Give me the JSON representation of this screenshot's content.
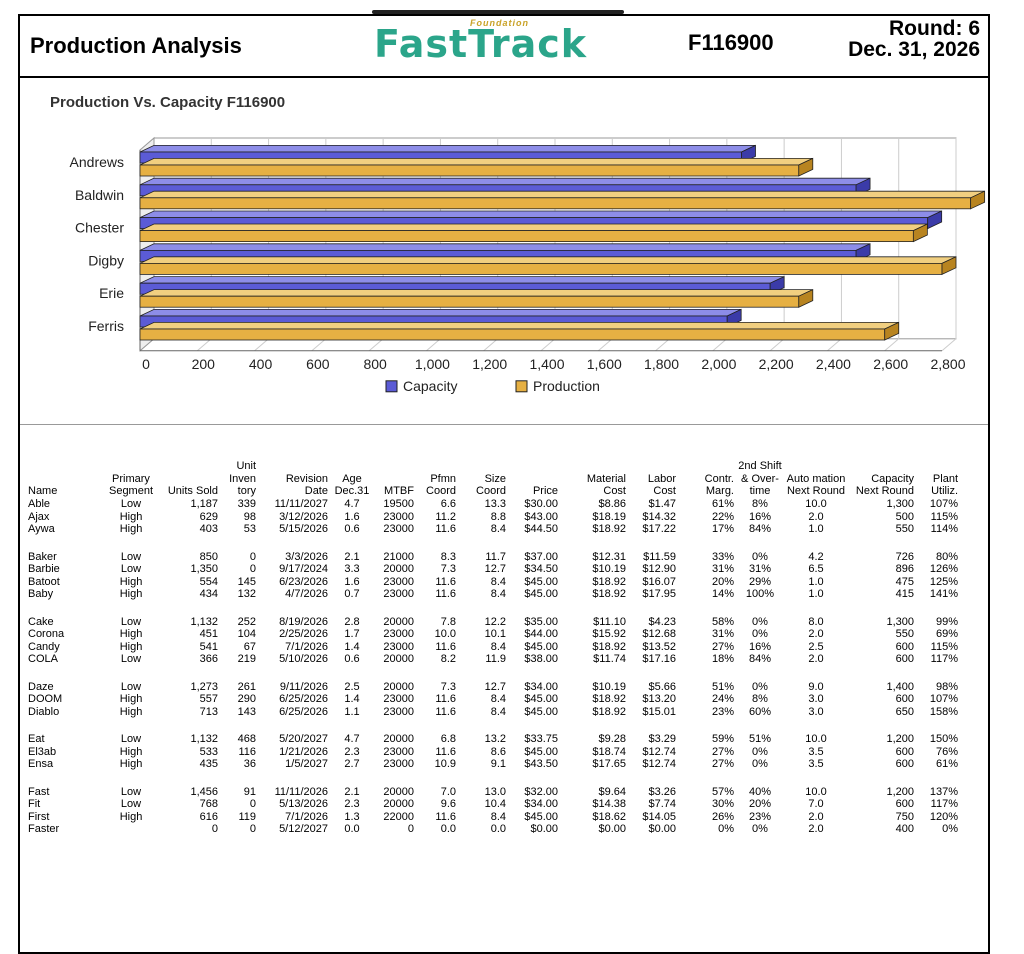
{
  "header": {
    "title": "Production Analysis",
    "logo_small": "Foundation",
    "logo_main": "FastTrack",
    "company": "F116900",
    "round_label": "Round: 6",
    "date": "Dec. 31, 2026"
  },
  "chart_data": {
    "type": "bar",
    "orientation": "horizontal",
    "title": "Production Vs. Capacity  F116900",
    "categories": [
      "Andrews",
      "Baldwin",
      "Chester",
      "Digby",
      "Erie",
      "Ferris"
    ],
    "series": [
      {
        "name": "Capacity",
        "color": "#5b5bd6",
        "values": [
          2100,
          2500,
          2750,
          2500,
          2200,
          2050
        ]
      },
      {
        "name": "Production",
        "color": "#e6b043",
        "values": [
          2300,
          2900,
          2700,
          2800,
          2300,
          2600
        ]
      }
    ],
    "xlim": [
      0,
      2800
    ],
    "xticks": [
      "0",
      "200",
      "400",
      "600",
      "800",
      "1,000",
      "1,200",
      "1,400",
      "1,600",
      "1,800",
      "2,000",
      "2,200",
      "2,400",
      "2,600",
      "2,800"
    ],
    "grid": true,
    "legend": "bottom"
  },
  "table": {
    "headers": [
      "Name",
      "Primary Segment",
      "Units Sold",
      "Unit Inven tory",
      "Revision Date",
      "Age Dec.31",
      "MTBF",
      "Pfmn Coord",
      "Size Coord",
      "Price",
      "Material Cost",
      "Labor Cost",
      "Contr. Marg.",
      "2nd Shift & Over- time",
      "Auto mation Next Round",
      "Capacity Next Round",
      "Plant Utiliz."
    ],
    "groups": [
      [
        [
          "Able",
          "Low",
          "1,187",
          "339",
          "11/11/2027",
          "4.7",
          "19500",
          "6.6",
          "13.3",
          "$30.00",
          "$8.86",
          "$1.47",
          "61%",
          "8%",
          "10.0",
          "1,300",
          "107%"
        ],
        [
          "Ajax",
          "High",
          "629",
          "98",
          "3/12/2026",
          "1.6",
          "23000",
          "11.2",
          "8.8",
          "$43.00",
          "$18.19",
          "$14.32",
          "22%",
          "16%",
          "2.0",
          "500",
          "115%"
        ],
        [
          "Aywa",
          "High",
          "403",
          "53",
          "5/15/2026",
          "0.6",
          "23000",
          "11.6",
          "8.4",
          "$44.50",
          "$18.92",
          "$17.22",
          "17%",
          "84%",
          "1.0",
          "550",
          "114%"
        ]
      ],
      [
        [
          "Baker",
          "Low",
          "850",
          "0",
          "3/3/2026",
          "2.1",
          "21000",
          "8.3",
          "11.7",
          "$37.00",
          "$12.31",
          "$11.59",
          "33%",
          "0%",
          "4.2",
          "726",
          "80%"
        ],
        [
          "Barbie",
          "Low",
          "1,350",
          "0",
          "9/17/2024",
          "3.3",
          "20000",
          "7.3",
          "12.7",
          "$34.50",
          "$10.19",
          "$12.90",
          "31%",
          "31%",
          "6.5",
          "896",
          "126%"
        ],
        [
          "Batoot",
          "High",
          "554",
          "145",
          "6/23/2026",
          "1.6",
          "23000",
          "11.6",
          "8.4",
          "$45.00",
          "$18.92",
          "$16.07",
          "20%",
          "29%",
          "1.0",
          "475",
          "125%"
        ],
        [
          "Baby",
          "High",
          "434",
          "132",
          "4/7/2026",
          "0.7",
          "23000",
          "11.6",
          "8.4",
          "$45.00",
          "$18.92",
          "$17.95",
          "14%",
          "100%",
          "1.0",
          "415",
          "141%"
        ]
      ],
      [
        [
          "Cake",
          "Low",
          "1,132",
          "252",
          "8/19/2026",
          "2.8",
          "20000",
          "7.8",
          "12.2",
          "$35.00",
          "$11.10",
          "$4.23",
          "58%",
          "0%",
          "8.0",
          "1,300",
          "99%"
        ],
        [
          "Corona",
          "High",
          "451",
          "104",
          "2/25/2026",
          "1.7",
          "23000",
          "10.0",
          "10.1",
          "$44.00",
          "$15.92",
          "$12.68",
          "31%",
          "0%",
          "2.0",
          "550",
          "69%"
        ],
        [
          "Candy",
          "High",
          "541",
          "67",
          "7/1/2026",
          "1.4",
          "23000",
          "11.6",
          "8.4",
          "$45.00",
          "$18.92",
          "$13.52",
          "27%",
          "16%",
          "2.5",
          "600",
          "115%"
        ],
        [
          "COLA",
          "Low",
          "366",
          "219",
          "5/10/2026",
          "0.6",
          "20000",
          "8.2",
          "11.9",
          "$38.00",
          "$11.74",
          "$17.16",
          "18%",
          "84%",
          "2.0",
          "600",
          "117%"
        ]
      ],
      [
        [
          "Daze",
          "Low",
          "1,273",
          "261",
          "9/11/2026",
          "2.5",
          "20000",
          "7.3",
          "12.7",
          "$34.00",
          "$10.19",
          "$5.66",
          "51%",
          "0%",
          "9.0",
          "1,400",
          "98%"
        ],
        [
          "DOOM",
          "High",
          "557",
          "290",
          "6/25/2026",
          "1.4",
          "23000",
          "11.6",
          "8.4",
          "$45.00",
          "$18.92",
          "$13.20",
          "24%",
          "8%",
          "3.0",
          "600",
          "107%"
        ],
        [
          "Diablo",
          "High",
          "713",
          "143",
          "6/25/2026",
          "1.1",
          "23000",
          "11.6",
          "8.4",
          "$45.00",
          "$18.92",
          "$15.01",
          "23%",
          "60%",
          "3.0",
          "650",
          "158%"
        ]
      ],
      [
        [
          "Eat",
          "Low",
          "1,132",
          "468",
          "5/20/2027",
          "4.7",
          "20000",
          "6.8",
          "13.2",
          "$33.75",
          "$9.28",
          "$3.29",
          "59%",
          "51%",
          "10.0",
          "1,200",
          "150%"
        ],
        [
          "El3ab",
          "High",
          "533",
          "116",
          "1/21/2026",
          "2.3",
          "23000",
          "11.6",
          "8.6",
          "$45.00",
          "$18.74",
          "$12.74",
          "27%",
          "0%",
          "3.5",
          "600",
          "76%"
        ],
        [
          "Ensa",
          "High",
          "435",
          "36",
          "1/5/2027",
          "2.7",
          "23000",
          "10.9",
          "9.1",
          "$43.50",
          "$17.65",
          "$12.74",
          "27%",
          "0%",
          "3.5",
          "600",
          "61%"
        ]
      ],
      [
        [
          "Fast",
          "Low",
          "1,456",
          "91",
          "11/11/2026",
          "2.1",
          "20000",
          "7.0",
          "13.0",
          "$32.00",
          "$9.64",
          "$3.26",
          "57%",
          "40%",
          "10.0",
          "1,200",
          "137%"
        ],
        [
          "Fit",
          "Low",
          "768",
          "0",
          "5/13/2026",
          "2.3",
          "20000",
          "9.6",
          "10.4",
          "$34.00",
          "$14.38",
          "$7.74",
          "30%",
          "20%",
          "7.0",
          "600",
          "117%"
        ],
        [
          "First",
          "High",
          "616",
          "119",
          "7/1/2026",
          "1.3",
          "22000",
          "11.6",
          "8.4",
          "$45.00",
          "$18.62",
          "$14.05",
          "26%",
          "23%",
          "2.0",
          "750",
          "120%"
        ],
        [
          "Faster",
          "",
          "0",
          "0",
          "5/12/2027",
          "0.0",
          "0",
          "0.0",
          "0.0",
          "$0.00",
          "$0.00",
          "$0.00",
          "0%",
          "0%",
          "2.0",
          "400",
          "0%"
        ]
      ]
    ]
  }
}
